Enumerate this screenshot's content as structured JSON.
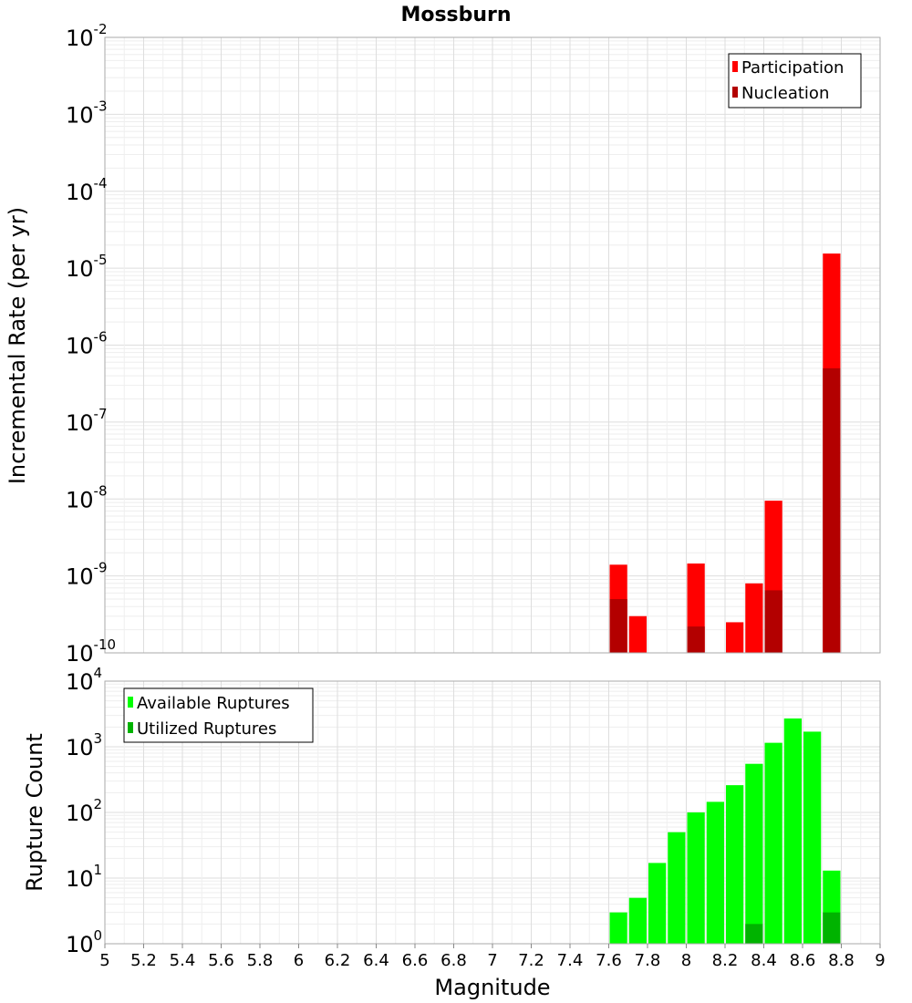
{
  "chart_data": [
    {
      "type": "bar",
      "title": "Mossburn",
      "ylabel": "Incremental Rate (per yr)",
      "xlim": [
        5,
        9
      ],
      "ylim_exponents": [
        -10,
        -2
      ],
      "yscale": "log",
      "grid": true,
      "legend_position": "top-right",
      "bin_width": 0.1,
      "legend": [
        "Participation",
        "Nucleation"
      ],
      "series": [
        {
          "name": "Participation",
          "color": "#ff0000",
          "points": [
            {
              "x": 7.65,
              "y": 1.4e-09
            },
            {
              "x": 7.75,
              "y": 3e-10
            },
            {
              "x": 8.05,
              "y": 1.45e-09
            },
            {
              "x": 8.25,
              "y": 2.5e-10
            },
            {
              "x": 8.35,
              "y": 8e-10
            },
            {
              "x": 8.45,
              "y": 9.5e-09
            },
            {
              "x": 8.75,
              "y": 1.55e-05
            }
          ]
        },
        {
          "name": "Nucleation",
          "color": "#b30000",
          "points": [
            {
              "x": 7.65,
              "y": 5e-10
            },
            {
              "x": 8.05,
              "y": 2.2e-10
            },
            {
              "x": 8.45,
              "y": 6.5e-10
            },
            {
              "x": 8.75,
              "y": 5e-07
            }
          ]
        }
      ]
    },
    {
      "type": "bar",
      "xlabel": "Magnitude",
      "ylabel": "Rupture Count",
      "xlim": [
        5,
        9
      ],
      "ylim_exponents": [
        0,
        4
      ],
      "yscale": "log",
      "grid": true,
      "legend_position": "top-left",
      "bin_width": 0.1,
      "legend": [
        "Available Ruptures",
        "Utilized Ruptures"
      ],
      "xticks": [
        "5",
        "5.2",
        "5.4",
        "5.6",
        "5.8",
        "6",
        "6.2",
        "6.4",
        "6.6",
        "6.8",
        "7",
        "7.2",
        "7.4",
        "7.6",
        "7.8",
        "8",
        "8.2",
        "8.4",
        "8.6",
        "8.8",
        "9"
      ],
      "series": [
        {
          "name": "Available Ruptures",
          "color": "#00ff00",
          "points": [
            {
              "x": 7.25,
              "y": 1
            },
            {
              "x": 7.65,
              "y": 3
            },
            {
              "x": 7.75,
              "y": 5
            },
            {
              "x": 7.85,
              "y": 17
            },
            {
              "x": 7.95,
              "y": 50
            },
            {
              "x": 8.05,
              "y": 100
            },
            {
              "x": 8.15,
              "y": 145
            },
            {
              "x": 8.25,
              "y": 260
            },
            {
              "x": 8.35,
              "y": 550
            },
            {
              "x": 8.45,
              "y": 1150
            },
            {
              "x": 8.55,
              "y": 2700
            },
            {
              "x": 8.65,
              "y": 1700
            },
            {
              "x": 8.75,
              "y": 13
            }
          ]
        },
        {
          "name": "Utilized Ruptures",
          "color": "#00b300",
          "points": [
            {
              "x": 7.65,
              "y": 1
            },
            {
              "x": 7.75,
              "y": 1
            },
            {
              "x": 7.85,
              "y": 1
            },
            {
              "x": 8.05,
              "y": 1
            },
            {
              "x": 8.25,
              "y": 1
            },
            {
              "x": 8.35,
              "y": 2
            },
            {
              "x": 8.45,
              "y": 1
            },
            {
              "x": 8.75,
              "y": 3
            }
          ]
        }
      ]
    }
  ]
}
